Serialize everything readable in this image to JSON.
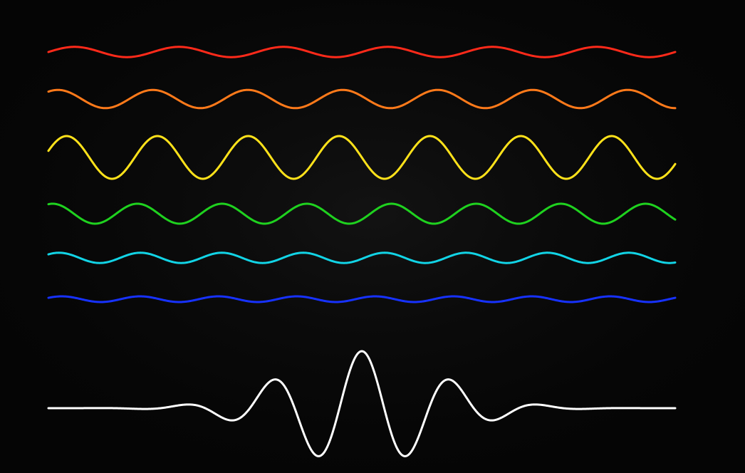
{
  "diagram": {
    "background_color": "#050505",
    "waves": [
      {
        "id": "red",
        "color": "#ff2a1a",
        "amplitude": 0.18,
        "frequency": 6.0,
        "phase": 0.0
      },
      {
        "id": "orange",
        "color": "#ff7a1a",
        "amplitude": 0.32,
        "frequency": 6.6,
        "phase": 0.15
      },
      {
        "id": "yellow",
        "color": "#ffe21a",
        "amplitude": 0.75,
        "frequency": 6.9,
        "phase": 0.05
      },
      {
        "id": "green",
        "color": "#1fd21f",
        "amplitude": 0.35,
        "frequency": 7.4,
        "phase": 0.2
      },
      {
        "id": "cyan",
        "color": "#12d4e6",
        "amplitude": 0.18,
        "frequency": 7.7,
        "phase": 0.12
      },
      {
        "id": "blue",
        "color": "#1732ff",
        "amplitude": 0.1,
        "frequency": 8.0,
        "phase": 0.08
      }
    ],
    "packet": {
      "color": "#ffffff",
      "center": 0.5,
      "envelope_width": 0.12,
      "frequency": 7.0,
      "amplitude": 1.0
    }
  }
}
